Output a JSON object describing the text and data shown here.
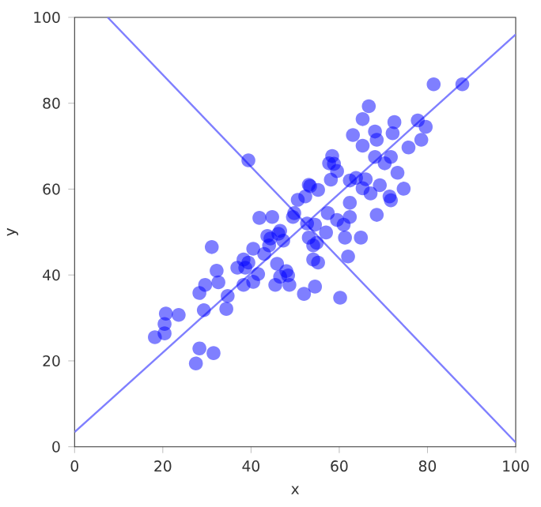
{
  "chart_data": {
    "type": "scatter",
    "xlabel": "x",
    "ylabel": "y",
    "xlim": [
      0,
      100
    ],
    "ylim": [
      0,
      100
    ],
    "xticks": [
      0,
      20,
      40,
      60,
      80,
      100
    ],
    "yticks": [
      0,
      20,
      40,
      60,
      80,
      100
    ],
    "grid": false,
    "marker": "circle",
    "series": [
      {
        "color": "#0000ff",
        "x": [
          18.2,
          20.4,
          20.4,
          20.7,
          23.6,
          27.5,
          28.3,
          28.3,
          29.6,
          29.3,
          31.5,
          31.1,
          32.2,
          32.6,
          34.4,
          34.7,
          36.9,
          38.3,
          38.7,
          39.4,
          38.3,
          39.4,
          40.5,
          40.5,
          41.6,
          41.9,
          43.0,
          43.7,
          44.1,
          44.4,
          44.8,
          45.9,
          46.2,
          46.6,
          46.6,
          45.5,
          47.3,
          48.0,
          48.4,
          48.7,
          49.5,
          49.8,
          50.6,
          52.0,
          52.3,
          52.7,
          53.1,
          53.4,
          53.1,
          54.1,
          54.1,
          54.5,
          54.5,
          54.9,
          55.2,
          55.2,
          57.0,
          57.4,
          57.7,
          58.1,
          58.4,
          58.8,
          59.5,
          59.5,
          60.2,
          61.0,
          61.3,
          62.0,
          62.4,
          62.4,
          62.4,
          63.1,
          63.8,
          64.9,
          65.3,
          65.3,
          65.3,
          66.0,
          66.7,
          67.1,
          68.1,
          68.1,
          68.5,
          68.5,
          69.2,
          70.3,
          71.4,
          71.7,
          71.7,
          72.1,
          72.5,
          73.2,
          74.6,
          75.7,
          77.8,
          78.6,
          79.6,
          81.4,
          87.9
        ],
        "values": [
          25.5,
          26.4,
          28.6,
          31.0,
          30.7,
          19.4,
          22.9,
          35.8,
          37.7,
          31.8,
          21.8,
          46.5,
          41.0,
          38.3,
          32.1,
          35.1,
          41.7,
          43.6,
          41.7,
          42.9,
          37.7,
          66.7,
          46.1,
          38.4,
          40.2,
          53.3,
          44.9,
          49.1,
          46.9,
          48.5,
          53.5,
          42.6,
          49.6,
          50.3,
          39.6,
          37.7,
          48.0,
          40.9,
          39.9,
          37.7,
          53.5,
          54.4,
          57.5,
          35.6,
          58.3,
          52.0,
          61.0,
          60.7,
          48.7,
          46.9,
          43.6,
          51.7,
          37.3,
          47.5,
          42.9,
          59.8,
          49.9,
          54.4,
          66.0,
          62.2,
          67.7,
          65.9,
          64.2,
          52.8,
          34.7,
          51.7,
          48.7,
          44.3,
          56.8,
          53.5,
          62.0,
          72.6,
          62.6,
          48.7,
          60.2,
          70.1,
          76.3,
          62.3,
          79.3,
          59.0,
          67.5,
          73.4,
          71.5,
          54.0,
          60.9,
          66.0,
          58.3,
          57.4,
          67.5,
          73.0,
          75.6,
          63.8,
          60.1,
          69.7,
          76.0,
          71.5,
          74.5,
          84.4,
          84.4
        ]
      },
      {
        "type": "line",
        "marker": "none",
        "color": "#7f7fff",
        "x": [
          0,
          100
        ],
        "values": [
          3.4,
          96
        ]
      },
      {
        "type": "line",
        "marker": "none",
        "color": "#7f7fff",
        "x": [
          7.5,
          100
        ],
        "values": [
          100,
          1.0
        ]
      }
    ]
  }
}
